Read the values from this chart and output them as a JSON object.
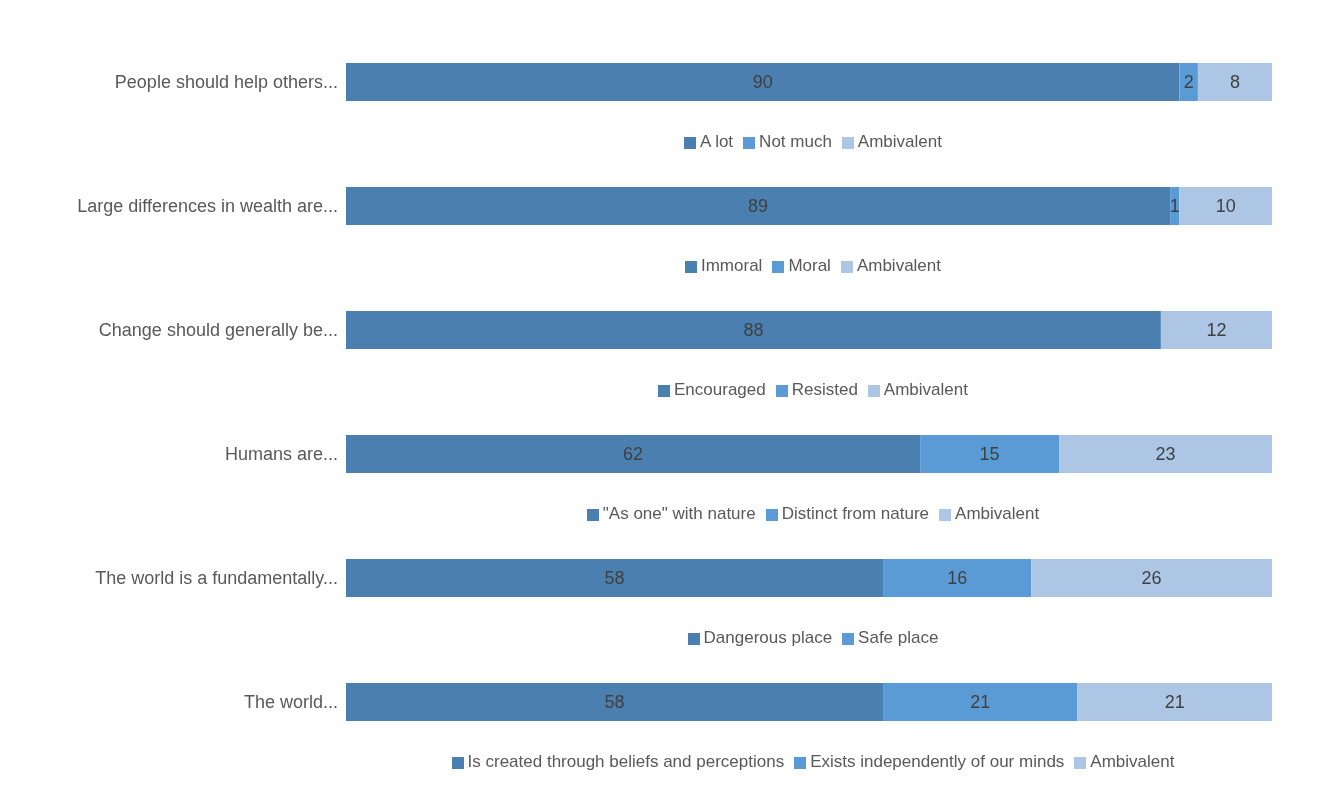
{
  "chart_data": [
    {
      "type": "bar",
      "orientation": "horizontal",
      "stacked": true,
      "data_labels": true,
      "legend": "bottom",
      "tick_labels": "y",
      "categories": [
        "People should help others..."
      ],
      "series": [
        {
          "name": "A lot",
          "color": "#4a7fb0",
          "values": [
            90
          ]
        },
        {
          "name": "Not much",
          "color": "#5b9bd5",
          "values": [
            2
          ]
        },
        {
          "name": "Ambivalent",
          "color": "#adc6e6",
          "values": [
            8
          ]
        }
      ]
    },
    {
      "type": "bar",
      "orientation": "horizontal",
      "stacked": true,
      "data_labels": true,
      "legend": "bottom",
      "tick_labels": "y",
      "categories": [
        "Large differences in wealth are..."
      ],
      "series": [
        {
          "name": "Immoral",
          "color": "#4a7fb0",
          "values": [
            89
          ]
        },
        {
          "name": "Moral",
          "color": "#5b9bd5",
          "values": [
            1
          ]
        },
        {
          "name": "Ambivalent",
          "color": "#adc6e6",
          "values": [
            10
          ]
        }
      ]
    },
    {
      "type": "bar",
      "orientation": "horizontal",
      "stacked": true,
      "data_labels": true,
      "legend": "bottom",
      "tick_labels": "y",
      "categories": [
        "Change should generally be..."
      ],
      "series": [
        {
          "name": "Encouraged",
          "color": "#4a7fb0",
          "values": [
            88
          ]
        },
        {
          "name": "Resisted",
          "color": "#5b9bd5",
          "values": [
            null
          ]
        },
        {
          "name": "Ambivalent",
          "color": "#adc6e6",
          "values": [
            12
          ]
        }
      ]
    },
    {
      "type": "bar",
      "orientation": "horizontal",
      "stacked": true,
      "data_labels": true,
      "legend": "bottom",
      "tick_labels": "y",
      "categories": [
        "Humans are..."
      ],
      "series": [
        {
          "name": "\"As one\" with nature",
          "color": "#4a7fb0",
          "values": [
            62
          ]
        },
        {
          "name": "Distinct from nature",
          "color": "#5b9bd5",
          "values": [
            15
          ]
        },
        {
          "name": "Ambivalent",
          "color": "#adc6e6",
          "values": [
            23
          ]
        }
      ]
    },
    {
      "type": "bar",
      "orientation": "horizontal",
      "stacked": true,
      "data_labels": true,
      "legend": "bottom",
      "tick_labels": "y",
      "categories": [
        "The world is a fundamentally..."
      ],
      "series": [
        {
          "name": "Dangerous place",
          "color": "#4a7fb0",
          "values": [
            58
          ]
        },
        {
          "name": "Safe place",
          "color": "#5b9bd5",
          "values": [
            16
          ]
        },
        {
          "color": "#adc6e6",
          "values": [
            26
          ]
        }
      ]
    },
    {
      "type": "bar",
      "orientation": "horizontal",
      "stacked": true,
      "data_labels": true,
      "legend": "bottom",
      "tick_labels": "y",
      "categories": [
        "The world..."
      ],
      "series": [
        {
          "name": "Is created through beliefs and perceptions",
          "color": "#4a7fb0",
          "values": [
            58
          ]
        },
        {
          "name": "Exists independently of our minds",
          "color": "#5b9bd5",
          "values": [
            21
          ]
        },
        {
          "name": "Ambivalent",
          "color": "#adc6e6",
          "values": [
            21
          ]
        }
      ]
    }
  ]
}
